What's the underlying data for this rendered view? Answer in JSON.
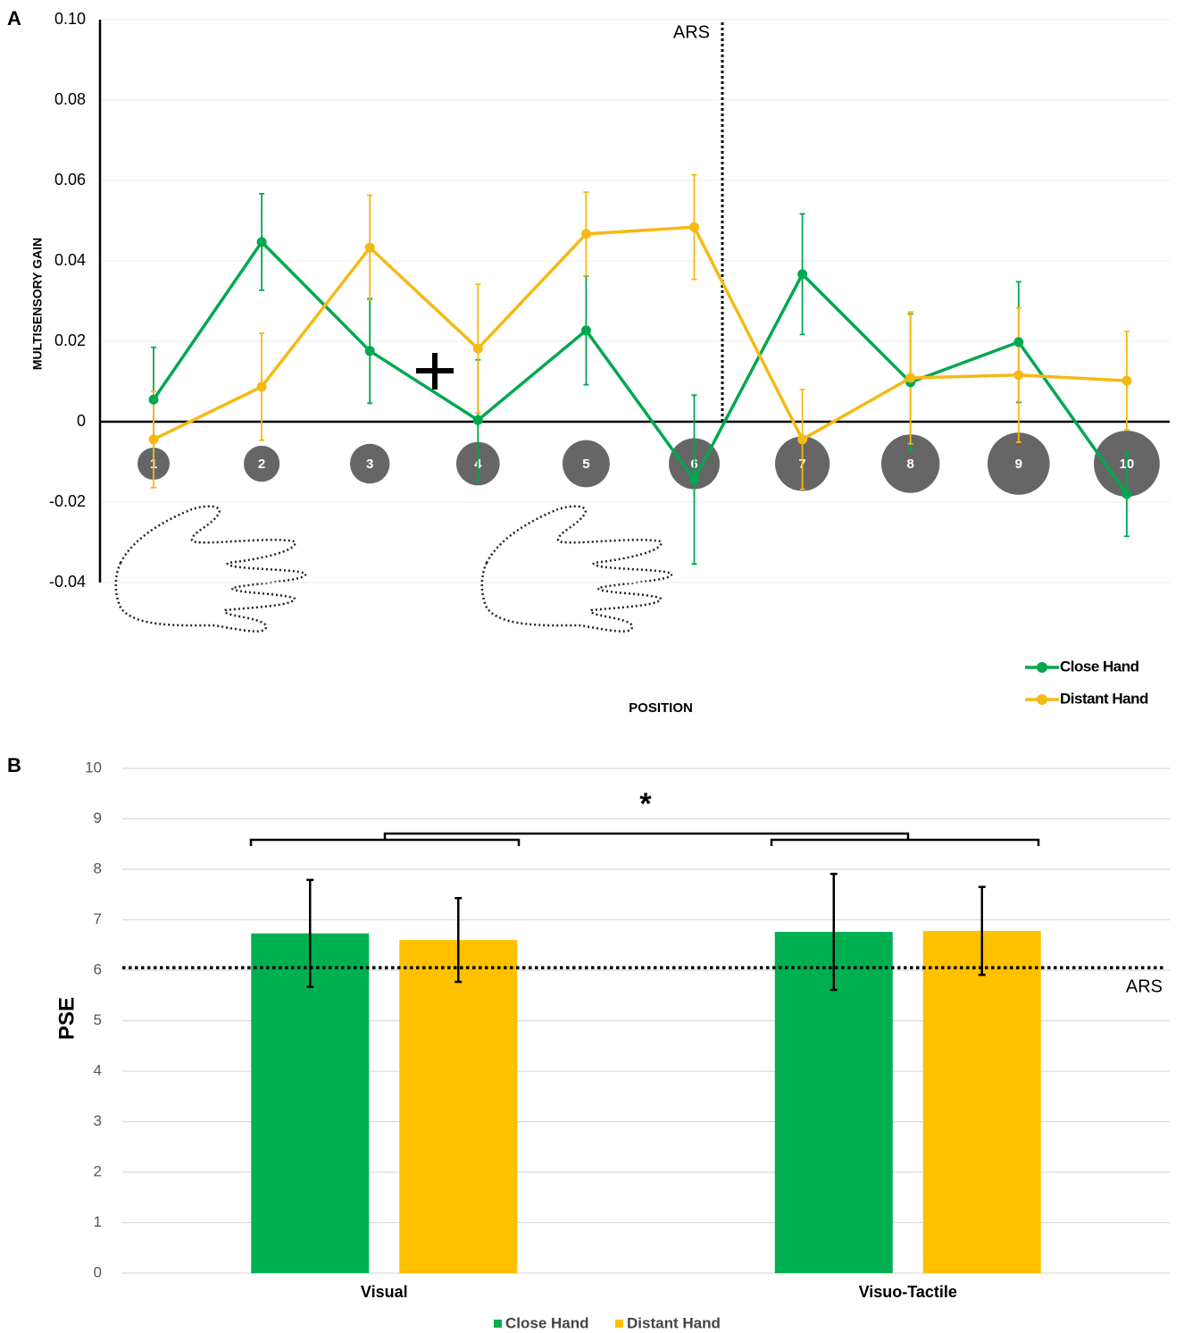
{
  "chart_data": [
    {
      "type": "line",
      "panel_label": "A",
      "y_label": "MULTISENSORY GAIN",
      "x_label": "POSITION",
      "annotation": "ARS",
      "categories": [
        "1",
        "2",
        "3",
        "4",
        "5",
        "6",
        "7",
        "8",
        "9",
        "10"
      ],
      "ylim": [
        -0.04,
        0.1
      ],
      "yticks": [
        -0.04,
        -0.02,
        0,
        0.02,
        0.04,
        0.06,
        0.08,
        {
          "value": 0.1,
          "label": "0.10"
        }
      ],
      "grid": true,
      "legend_position": "lower right",
      "series": [
        {
          "name": "Close Hand",
          "color": "#00a84f",
          "values": [
            0.0055,
            0.0447,
            0.0176,
            0.0004,
            0.0227,
            -0.0144,
            0.0367,
            0.0098,
            0.0198,
            -0.018
          ],
          "errors": [
            0.013,
            0.012,
            0.013,
            0.015,
            0.0135,
            0.021,
            0.015,
            0.017,
            0.015,
            0.0105
          ]
        },
        {
          "name": "Distant Hand",
          "color": "#f5b914",
          "values": [
            -0.0044,
            0.0087,
            0.0433,
            0.0182,
            0.0467,
            0.0484,
            -0.0044,
            0.0109,
            0.0116,
            0.0102
          ],
          "errors": [
            0.012,
            0.0133,
            0.013,
            0.016,
            0.0104,
            0.013,
            0.0124,
            0.0164,
            0.0167,
            0.0122
          ]
        }
      ]
    },
    {
      "type": "bar",
      "panel_label": "B",
      "y_label": "PSE",
      "annotation": "*",
      "categories": [
        "Visual",
        "Visuo-Tactile"
      ],
      "ylim": [
        0,
        10
      ],
      "yticks": [
        0,
        1,
        2,
        3,
        4,
        5,
        6,
        7,
        8,
        9,
        10
      ],
      "grid": true,
      "legend_position": "bottom center",
      "reference_line": {
        "value": 6.05,
        "label": "ARS"
      },
      "series": [
        {
          "name": "Close Hand",
          "color": "#00b050",
          "values": [
            6.73,
            6.76
          ],
          "errors": [
            1.06,
            1.15
          ]
        },
        {
          "name": "Distant Hand",
          "color": "#ffc000",
          "values": [
            6.6,
            6.78
          ],
          "errors": [
            0.83,
            0.87
          ]
        }
      ]
    }
  ]
}
